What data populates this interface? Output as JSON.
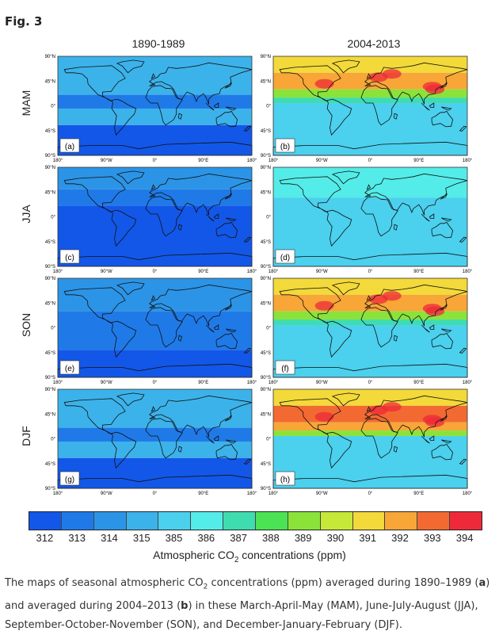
{
  "figure": {
    "label": "Fig. 3",
    "columns": [
      "1890-1989",
      "2004-2013"
    ],
    "rows": [
      "MAM",
      "JJA",
      "SON",
      "DJF"
    ],
    "panel_letters": [
      "(a)",
      "(b)",
      "(c)",
      "(d)",
      "(e)",
      "(f)",
      "(g)",
      "(h)"
    ],
    "lat_ticks": [
      "90°N",
      "45°N",
      "0°",
      "45°S",
      "90°S"
    ],
    "lon_ticks": [
      "180°",
      "90°W",
      "0°",
      "90°E",
      "180°"
    ]
  },
  "legend": {
    "values": [
      "312",
      "313",
      "314",
      "315",
      "385",
      "386",
      "387",
      "388",
      "389",
      "390",
      "391",
      "392",
      "393",
      "394"
    ],
    "colors": [
      "#1357e8",
      "#1f7ae8",
      "#2c94e6",
      "#3cb2ea",
      "#4bd0ee",
      "#54ece8",
      "#3fdcb0",
      "#4be354",
      "#8be33a",
      "#c6e838",
      "#f3d93a",
      "#f7a637",
      "#f26a32",
      "#ee2a3a"
    ],
    "title_prefix": "Atmospheric CO",
    "title_sub": "2",
    "title_suffix": " concentrations (ppm)"
  },
  "caption": {
    "t1": "The maps of seasonal atmospheric CO",
    "t2": "2",
    "t3": " concentrations (ppm) averaged during 1890–1989 (",
    "t4": "a",
    "t5": ") and averaged during 2004–2013 (",
    "t6": "b",
    "t7": ") in these March-April-May (MAM), June-July-August (JJA), September-October-November (SON), and December-January-February (DJF)."
  }
}
